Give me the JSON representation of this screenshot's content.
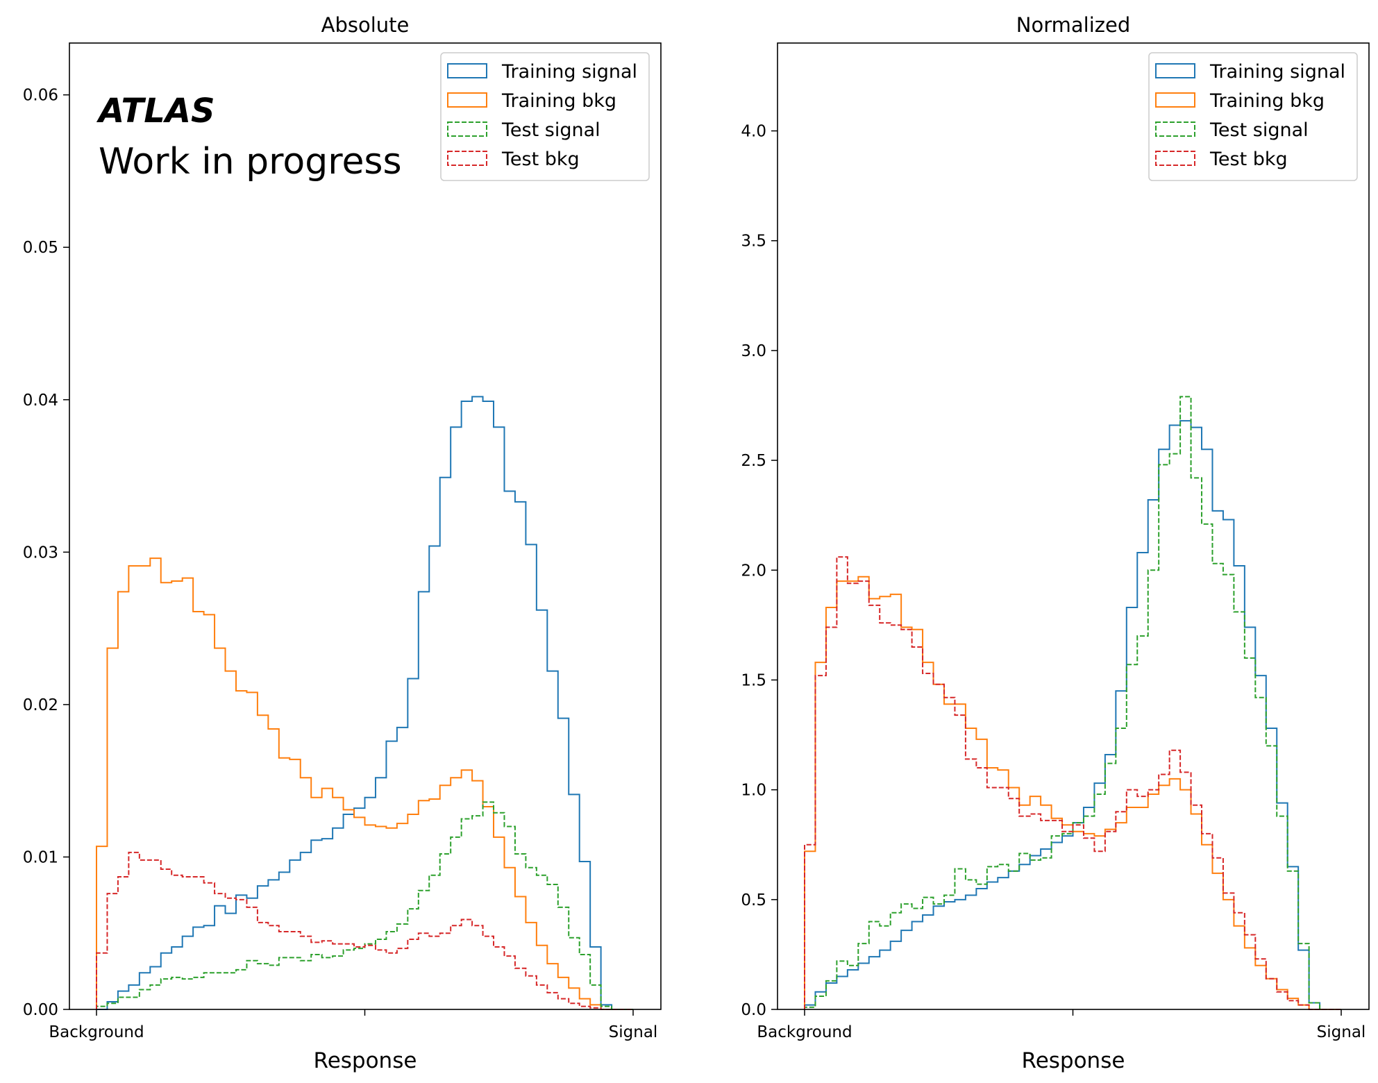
{
  "chart_data": [
    {
      "type": "histogram",
      "title": "Absolute",
      "xlabel": "Response",
      "ylabel": "",
      "xlim": [
        0,
        1
      ],
      "ylim": [
        0,
        0.0634
      ],
      "xticks": [
        {
          "value": 0,
          "label": "Background"
        },
        {
          "value": 0.5,
          "label": ""
        },
        {
          "value": 1,
          "label": "Signal"
        }
      ],
      "yticks": [
        {
          "value": 0.0,
          "label": "0.00"
        },
        {
          "value": 0.01,
          "label": "0.01"
        },
        {
          "value": 0.02,
          "label": "0.02"
        },
        {
          "value": 0.03,
          "label": "0.03"
        },
        {
          "value": 0.04,
          "label": "0.04"
        },
        {
          "value": 0.05,
          "label": "0.05"
        },
        {
          "value": 0.06,
          "label": "0.06"
        }
      ],
      "grid": false,
      "legend_position": "top-right",
      "annotation": {
        "experiment": "ATLAS",
        "status": "Work in progress"
      },
      "bins": 50,
      "series": [
        {
          "name": "Training signal",
          "color": "#1f77b4",
          "style": "solid",
          "values": [
            0.0,
            0.0005,
            0.0012,
            0.0016,
            0.0024,
            0.0028,
            0.0037,
            0.0041,
            0.0048,
            0.0054,
            0.0055,
            0.0068,
            0.0063,
            0.0075,
            0.0073,
            0.0081,
            0.0085,
            0.009,
            0.0098,
            0.0103,
            0.0111,
            0.0112,
            0.0119,
            0.0128,
            0.0132,
            0.0139,
            0.0152,
            0.0176,
            0.0185,
            0.0217,
            0.0274,
            0.0304,
            0.0349,
            0.0382,
            0.0399,
            0.0402,
            0.0399,
            0.0382,
            0.034,
            0.0333,
            0.0305,
            0.0262,
            0.0222,
            0.0191,
            0.0141,
            0.0097,
            0.0041,
            0.0003,
            0,
            0
          ]
        },
        {
          "name": "Training bkg",
          "color": "#ff7f0e",
          "style": "solid",
          "values": [
            0.0107,
            0.0237,
            0.0274,
            0.0291,
            0.0291,
            0.0296,
            0.028,
            0.0281,
            0.0283,
            0.0261,
            0.0259,
            0.0237,
            0.0222,
            0.0209,
            0.0208,
            0.0193,
            0.0184,
            0.0165,
            0.0164,
            0.0152,
            0.0139,
            0.0145,
            0.0139,
            0.0131,
            0.0126,
            0.0121,
            0.012,
            0.0119,
            0.0122,
            0.0128,
            0.0137,
            0.0138,
            0.0147,
            0.0152,
            0.0157,
            0.015,
            0.0133,
            0.0113,
            0.0093,
            0.0074,
            0.0057,
            0.0042,
            0.003,
            0.0021,
            0.0014,
            0.0007,
            0.0003,
            0,
            0,
            0
          ]
        },
        {
          "name": "Test signal",
          "color": "#2ca02c",
          "style": "dashed",
          "values": [
            0.0002,
            0.0004,
            0.0008,
            0.0008,
            0.0013,
            0.0016,
            0.002,
            0.0021,
            0.002,
            0.0021,
            0.0024,
            0.0024,
            0.0024,
            0.0026,
            0.0032,
            0.003,
            0.0029,
            0.0034,
            0.0034,
            0.0032,
            0.0036,
            0.0034,
            0.0035,
            0.0039,
            0.004,
            0.0043,
            0.0046,
            0.0051,
            0.0056,
            0.0066,
            0.0078,
            0.0088,
            0.0102,
            0.0113,
            0.0125,
            0.0127,
            0.0136,
            0.0129,
            0.012,
            0.0102,
            0.0093,
            0.0088,
            0.0082,
            0.0067,
            0.0047,
            0.0036,
            0.0016,
            0.0002,
            0,
            0
          ]
        },
        {
          "name": "Test bkg",
          "color": "#d62728",
          "style": "dashed",
          "values": [
            0.0037,
            0.0076,
            0.0087,
            0.0103,
            0.0098,
            0.0098,
            0.0092,
            0.0088,
            0.0087,
            0.0087,
            0.0083,
            0.0076,
            0.0073,
            0.0072,
            0.0067,
            0.0057,
            0.0055,
            0.0051,
            0.0051,
            0.0048,
            0.0044,
            0.0045,
            0.0043,
            0.0043,
            0.0041,
            0.0042,
            0.0039,
            0.0037,
            0.004,
            0.0046,
            0.005,
            0.0048,
            0.005,
            0.0055,
            0.0059,
            0.0055,
            0.0048,
            0.0041,
            0.0035,
            0.0027,
            0.0022,
            0.0016,
            0.0011,
            0.0007,
            0.0004,
            0.0002,
            0.0001,
            0,
            0,
            0
          ]
        }
      ]
    },
    {
      "type": "histogram",
      "title": "Normalized",
      "xlabel": "Response",
      "ylabel": "",
      "xlim": [
        0,
        1
      ],
      "ylim": [
        0,
        4.4
      ],
      "xticks": [
        {
          "value": 0,
          "label": "Background"
        },
        {
          "value": 0.5,
          "label": ""
        },
        {
          "value": 1,
          "label": "Signal"
        }
      ],
      "yticks": [
        {
          "value": 0.0,
          "label": "0.0"
        },
        {
          "value": 0.5,
          "label": "0.5"
        },
        {
          "value": 1.0,
          "label": "1.0"
        },
        {
          "value": 1.5,
          "label": "1.5"
        },
        {
          "value": 2.0,
          "label": "2.0"
        },
        {
          "value": 2.5,
          "label": "2.5"
        },
        {
          "value": 3.0,
          "label": "3.0"
        },
        {
          "value": 3.5,
          "label": "3.5"
        },
        {
          "value": 4.0,
          "label": "4.0"
        }
      ],
      "grid": false,
      "legend_position": "top-right",
      "bins": 50,
      "series": [
        {
          "name": "Training signal",
          "color": "#1f77b4",
          "style": "solid",
          "values": [
            0.02,
            0.08,
            0.12,
            0.15,
            0.18,
            0.21,
            0.24,
            0.27,
            0.31,
            0.36,
            0.4,
            0.43,
            0.47,
            0.49,
            0.5,
            0.52,
            0.55,
            0.58,
            0.6,
            0.63,
            0.66,
            0.7,
            0.73,
            0.76,
            0.79,
            0.85,
            0.92,
            1.03,
            1.16,
            1.45,
            1.83,
            2.08,
            2.32,
            2.55,
            2.66,
            2.68,
            2.65,
            2.55,
            2.27,
            2.23,
            2.02,
            1.74,
            1.52,
            1.28,
            0.94,
            0.65,
            0.27,
            0.03,
            0,
            0
          ]
        },
        {
          "name": "Training bkg",
          "color": "#ff7f0e",
          "style": "solid",
          "values": [
            0.72,
            1.58,
            1.83,
            1.95,
            1.95,
            1.97,
            1.87,
            1.88,
            1.89,
            1.74,
            1.73,
            1.58,
            1.48,
            1.39,
            1.39,
            1.28,
            1.23,
            1.1,
            1.09,
            1.01,
            0.93,
            0.97,
            0.93,
            0.87,
            0.84,
            0.81,
            0.8,
            0.79,
            0.82,
            0.85,
            0.92,
            0.92,
            0.98,
            1.02,
            1.05,
            1.0,
            0.89,
            0.75,
            0.62,
            0.5,
            0.38,
            0.28,
            0.2,
            0.14,
            0.09,
            0.05,
            0.02,
            0,
            0,
            0
          ]
        },
        {
          "name": "Test signal",
          "color": "#2ca02c",
          "style": "dashed",
          "values": [
            0.01,
            0.06,
            0.13,
            0.22,
            0.2,
            0.3,
            0.4,
            0.38,
            0.44,
            0.48,
            0.46,
            0.51,
            0.48,
            0.52,
            0.64,
            0.59,
            0.57,
            0.65,
            0.66,
            0.63,
            0.71,
            0.68,
            0.69,
            0.79,
            0.8,
            0.85,
            0.88,
            0.98,
            1.12,
            1.28,
            1.57,
            1.7,
            2.0,
            2.48,
            2.53,
            2.79,
            2.42,
            2.21,
            2.03,
            1.98,
            1.81,
            1.6,
            1.42,
            1.2,
            0.88,
            0.63,
            0.3,
            0.03,
            0,
            0
          ]
        },
        {
          "name": "Test bkg",
          "color": "#d62728",
          "style": "dashed",
          "values": [
            0.75,
            1.52,
            1.74,
            2.06,
            1.94,
            1.95,
            1.84,
            1.76,
            1.75,
            1.73,
            1.65,
            1.53,
            1.48,
            1.42,
            1.34,
            1.14,
            1.1,
            1.01,
            1.01,
            0.96,
            0.88,
            0.89,
            0.86,
            0.86,
            0.81,
            0.84,
            0.78,
            0.72,
            0.81,
            0.9,
            1.0,
            0.97,
            1.0,
            1.07,
            1.18,
            1.08,
            0.93,
            0.8,
            0.69,
            0.53,
            0.44,
            0.34,
            0.23,
            0.14,
            0.08,
            0.04,
            0.02,
            0,
            0,
            0
          ]
        }
      ]
    }
  ]
}
